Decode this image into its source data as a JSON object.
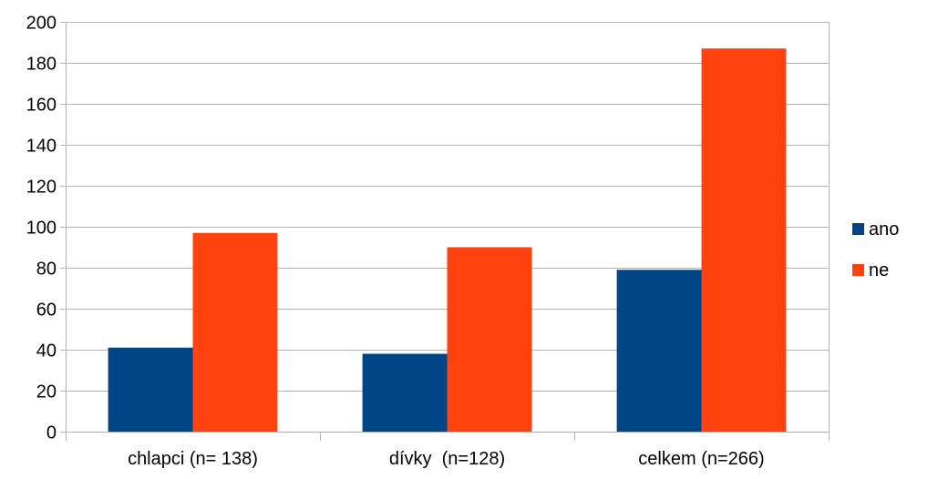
{
  "chart_data": {
    "type": "bar",
    "categories": [
      "chlapci (n= 138)",
      "dívky  (n=128)",
      "celkem (n=266)"
    ],
    "series": [
      {
        "name": "ano",
        "values": [
          41,
          38,
          79
        ],
        "color": "#004586"
      },
      {
        "name": "ne",
        "values": [
          97,
          90,
          187
        ],
        "color": "#ff420e"
      }
    ],
    "y_ticks": [
      "0",
      "20",
      "40",
      "60",
      "80",
      "100",
      "120",
      "140",
      "160",
      "180",
      "200"
    ],
    "ylim": [
      0,
      200
    ],
    "grid": true,
    "grid_color": "#b3b3b3",
    "legend_position": "right"
  }
}
